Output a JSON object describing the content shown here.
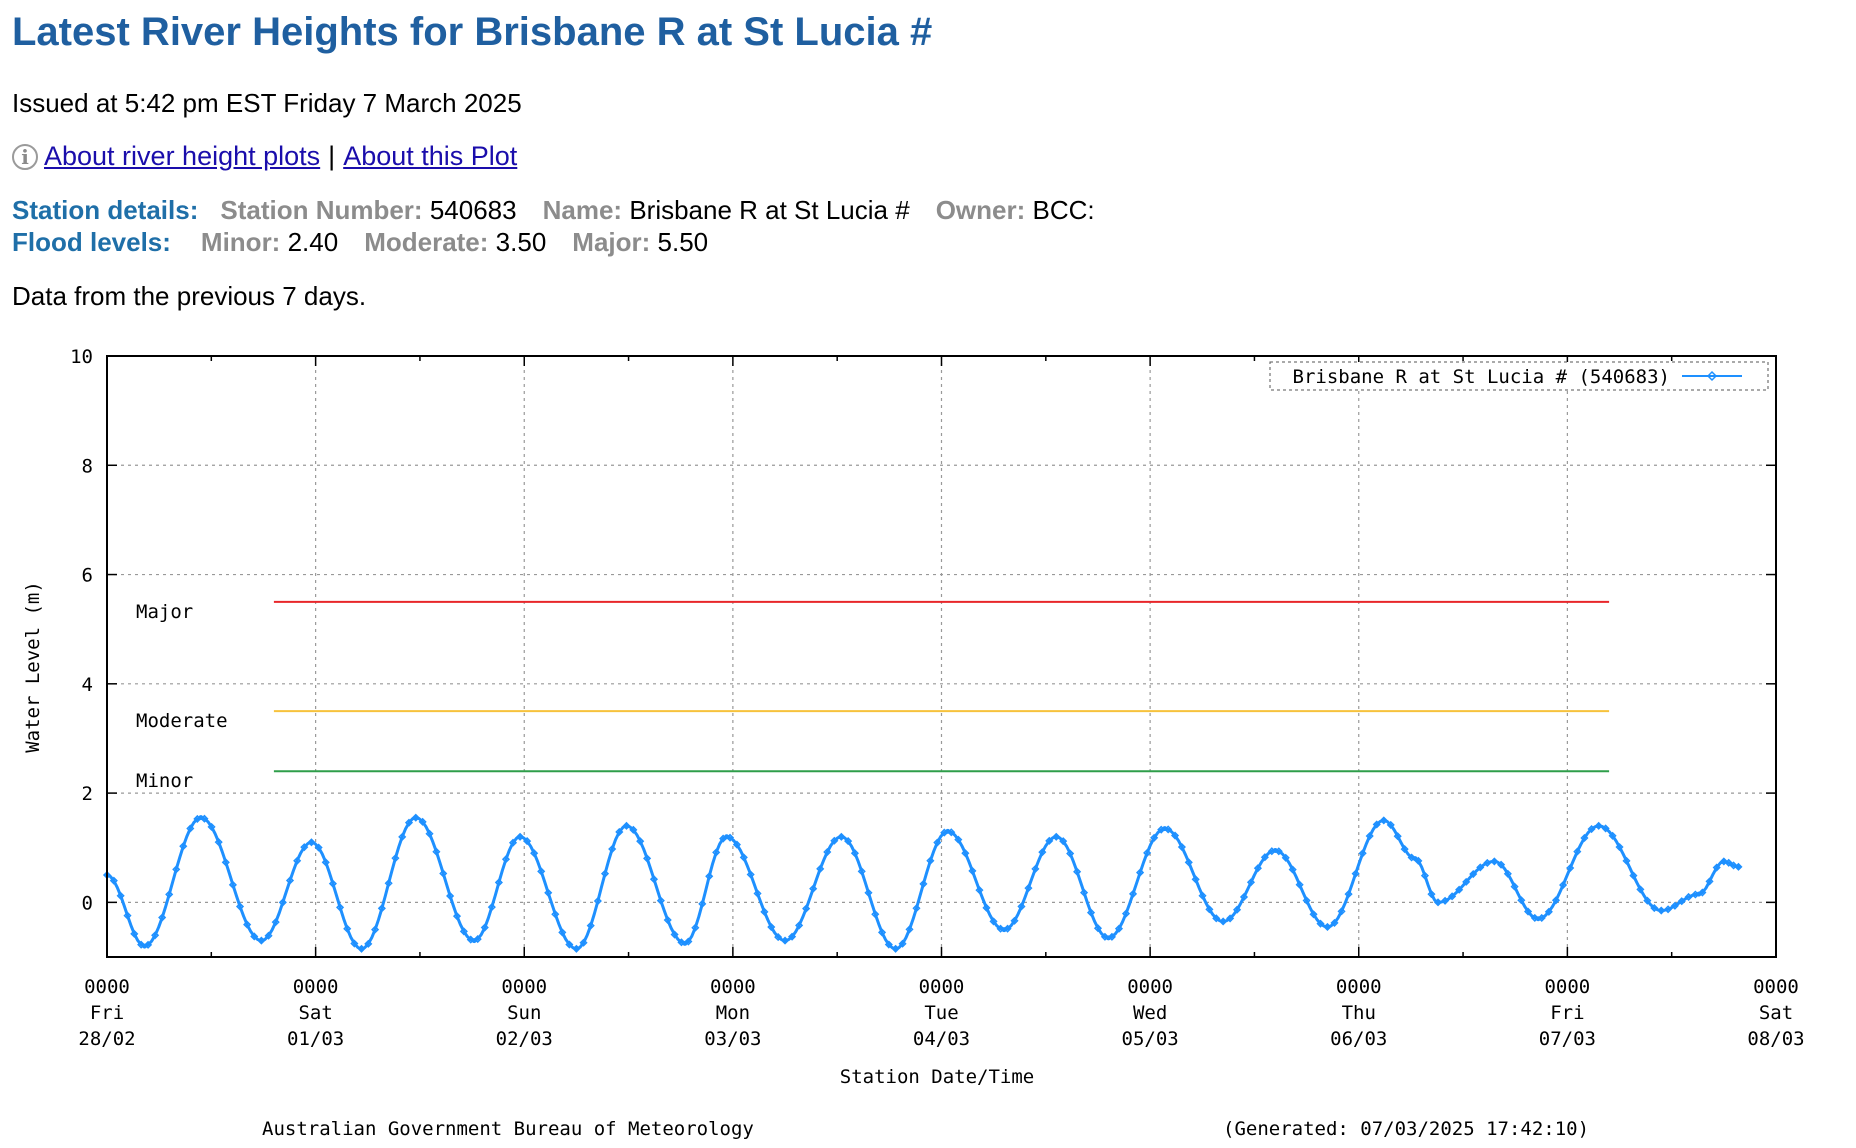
{
  "page": {
    "title": "Latest River Heights for Brisbane R at St Lucia #",
    "issued": "Issued at 5:42 pm EST Friday 7 March 2025",
    "info_icon": "info-icon",
    "links": {
      "about_plots": "About river height plots",
      "separator": "|",
      "about_plot": "About this Plot"
    },
    "station": {
      "heading": "Station details:",
      "number_label": "Station Number:",
      "number": "540683",
      "name_label": "Name:",
      "name": "Brisbane R at St Lucia #",
      "owner_label": "Owner:",
      "owner": "BCC:"
    },
    "flood": {
      "heading": "Flood levels:",
      "minor_label": "Minor:",
      "minor": "2.40",
      "moderate_label": "Moderate:",
      "moderate": "3.50",
      "major_label": "Major:",
      "major": "5.50"
    },
    "data_note": "Data from the previous 7 days."
  },
  "chart_data": {
    "type": "line",
    "ylabel": "Water Level (m)",
    "xlabel": "Station Date/Time",
    "ylim": [
      -1,
      10
    ],
    "yticks": [
      "10",
      "8",
      "6",
      "4",
      "2",
      "0"
    ],
    "ytick_values": [
      10,
      8,
      6,
      4,
      2,
      0
    ],
    "xlim_days": [
      0,
      8
    ],
    "xticks": [
      {
        "time": "0000",
        "day": "Fri",
        "date": "28/02"
      },
      {
        "time": "0000",
        "day": "Sat",
        "date": "01/03"
      },
      {
        "time": "0000",
        "day": "Sun",
        "date": "02/03"
      },
      {
        "time": "0000",
        "day": "Mon",
        "date": "03/03"
      },
      {
        "time": "0000",
        "day": "Tue",
        "date": "04/03"
      },
      {
        "time": "0000",
        "day": "Wed",
        "date": "05/03"
      },
      {
        "time": "0000",
        "day": "Thu",
        "date": "06/03"
      },
      {
        "time": "0000",
        "day": "Fri",
        "date": "07/03"
      },
      {
        "time": "0000",
        "day": "Sat",
        "date": "08/03"
      }
    ],
    "grid": true,
    "legend_position": "top-right",
    "legend": "Brisbane R at St Lucia # (540683)",
    "series_color": "#1e90ff",
    "flood_levels": [
      {
        "label": "Major",
        "value": 5.5,
        "color": "#e8262a"
      },
      {
        "label": "Moderate",
        "value": 3.5,
        "color": "#f7c23c"
      },
      {
        "label": "Minor",
        "value": 2.4,
        "color": "#2f9e4a"
      }
    ],
    "flood_level_span_days": [
      0.8,
      7.2
    ],
    "series": [
      {
        "name": "Brisbane R at St Lucia # (540683)",
        "points": [
          [
            0.0,
            0.5
          ],
          [
            0.18,
            -0.8
          ],
          [
            0.45,
            1.55
          ],
          [
            0.74,
            -0.7
          ],
          [
            0.98,
            1.1
          ],
          [
            1.22,
            -0.85
          ],
          [
            1.48,
            1.55
          ],
          [
            1.76,
            -0.7
          ],
          [
            1.98,
            1.2
          ],
          [
            2.25,
            -0.85
          ],
          [
            2.49,
            1.4
          ],
          [
            2.77,
            -0.75
          ],
          [
            2.97,
            1.2
          ],
          [
            3.25,
            -0.7
          ],
          [
            3.52,
            1.2
          ],
          [
            3.78,
            -0.85
          ],
          [
            4.03,
            1.3
          ],
          [
            4.3,
            -0.5
          ],
          [
            4.55,
            1.2
          ],
          [
            4.8,
            -0.65
          ],
          [
            5.07,
            1.35
          ],
          [
            5.35,
            -0.35
          ],
          [
            5.6,
            0.95
          ],
          [
            5.85,
            -0.45
          ],
          [
            6.12,
            1.5
          ],
          [
            6.27,
            0.8
          ],
          [
            6.38,
            0.0
          ],
          [
            6.65,
            0.75
          ],
          [
            6.86,
            -0.3
          ],
          [
            7.15,
            1.4
          ],
          [
            7.45,
            -0.15
          ],
          [
            7.63,
            0.15
          ],
          [
            7.75,
            0.75
          ],
          [
            7.82,
            0.65
          ]
        ]
      }
    ]
  },
  "footer": {
    "agency": "Australian Government Bureau of Meteorology",
    "generated": "(Generated: 07/03/2025 17:42:10)"
  }
}
